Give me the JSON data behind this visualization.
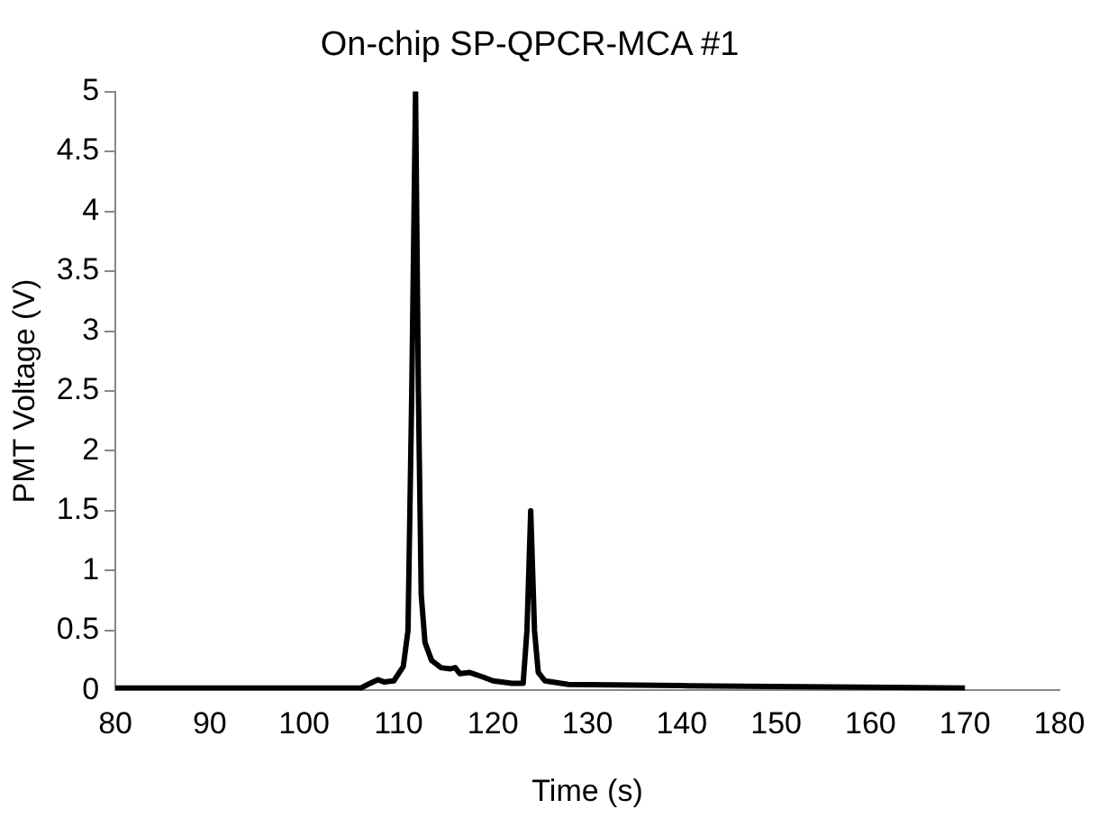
{
  "chart_data": {
    "type": "line",
    "title": "On-chip SP-QPCR-MCA #1",
    "xlabel": "Time (s)",
    "ylabel": "PMT Voltage (V)",
    "series": [
      {
        "color": "#000000",
        "x": [
          80,
          106,
          107,
          107.8,
          108.5,
          109.5,
          110.5,
          111,
          111.4,
          111.8,
          112.1,
          112.4,
          112.8,
          113.5,
          114.5,
          115.5,
          116,
          116.5,
          117.5,
          119,
          120,
          122,
          123.2,
          123.6,
          124,
          124.4,
          124.8,
          125.5,
          128,
          140,
          170
        ],
        "values": [
          0.02,
          0.02,
          0.06,
          0.09,
          0.07,
          0.08,
          0.2,
          0.5,
          2.5,
          5,
          2.5,
          0.8,
          0.4,
          0.25,
          0.19,
          0.18,
          0.19,
          0.14,
          0.15,
          0.11,
          0.08,
          0.06,
          0.06,
          0.5,
          1.5,
          0.5,
          0.15,
          0.08,
          0.05,
          0.04,
          0.02
        ]
      }
    ],
    "xlim": [
      80,
      180
    ],
    "xticks": [
      80,
      90,
      100,
      110,
      120,
      130,
      140,
      150,
      160,
      170,
      180
    ],
    "ylim": [
      0,
      5
    ],
    "yticks": [
      0,
      0.5,
      1,
      1.5,
      2,
      2.5,
      3,
      3.5,
      4,
      4.5,
      5
    ],
    "grid": false,
    "legend": false,
    "marker": "none",
    "line_style": "solid"
  }
}
